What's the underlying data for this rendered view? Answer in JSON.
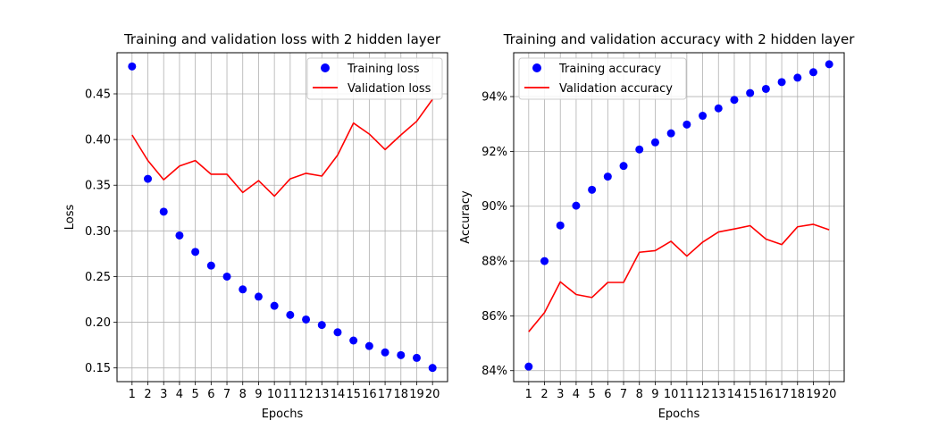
{
  "chart_data": [
    {
      "type": "line",
      "title": "Training and validation loss with 2 hidden layer",
      "xlabel": "Epochs",
      "ylabel": "Loss",
      "x": [
        1,
        2,
        3,
        4,
        5,
        6,
        7,
        8,
        9,
        10,
        11,
        12,
        13,
        14,
        15,
        16,
        17,
        18,
        19,
        20
      ],
      "x_ticks": [
        "1",
        "2",
        "3",
        "4",
        "5",
        "6",
        "7",
        "8",
        "9",
        "10",
        "11",
        "12",
        "13",
        "14",
        "15",
        "16",
        "17",
        "18",
        "19",
        "20"
      ],
      "xlim": [
        0.05,
        20.95
      ],
      "ylim": [
        0.135,
        0.495
      ],
      "y_ticks": [
        0.15,
        0.2,
        0.25,
        0.3,
        0.35,
        0.4,
        0.45
      ],
      "y_tick_labels": [
        "0.15",
        "0.20",
        "0.25",
        "0.30",
        "0.35",
        "0.40",
        "0.45"
      ],
      "grid": true,
      "legend_position": "top-right",
      "series": [
        {
          "name": "Training loss",
          "style": "markers",
          "color": "#0000ff",
          "values": [
            0.48,
            0.357,
            0.321,
            0.295,
            0.277,
            0.262,
            0.25,
            0.236,
            0.228,
            0.218,
            0.208,
            0.203,
            0.197,
            0.189,
            0.18,
            0.174,
            0.167,
            0.164,
            0.161,
            0.15
          ]
        },
        {
          "name": "Validation loss",
          "style": "line",
          "color": "#ff0000",
          "values": [
            0.405,
            0.377,
            0.356,
            0.371,
            0.377,
            0.362,
            0.362,
            0.342,
            0.355,
            0.338,
            0.357,
            0.363,
            0.36,
            0.383,
            0.418,
            0.406,
            0.389,
            0.405,
            0.42,
            0.444
          ]
        }
      ]
    },
    {
      "type": "line",
      "title": "Training and validation accuracy with 2 hidden layer",
      "xlabel": "Epochs",
      "ylabel": "Accuracy",
      "x": [
        1,
        2,
        3,
        4,
        5,
        6,
        7,
        8,
        9,
        10,
        11,
        12,
        13,
        14,
        15,
        16,
        17,
        18,
        19,
        20
      ],
      "x_ticks": [
        "1",
        "2",
        "3",
        "4",
        "5",
        "6",
        "7",
        "8",
        "9",
        "10",
        "11",
        "12",
        "13",
        "14",
        "15",
        "16",
        "17",
        "18",
        "19",
        "20"
      ],
      "xlim": [
        0.05,
        20.95
      ],
      "ylim": [
        83.6,
        95.6
      ],
      "y_ticks": [
        84,
        86,
        88,
        90,
        92,
        94
      ],
      "y_tick_labels": [
        "84%",
        "86%",
        "88%",
        "90%",
        "92%",
        "94%"
      ],
      "grid": true,
      "legend_position": "top-left",
      "series": [
        {
          "name": "Training accuracy",
          "style": "markers",
          "color": "#0000ff",
          "values": [
            84.15,
            88.0,
            89.3,
            90.02,
            90.6,
            91.08,
            91.47,
            92.07,
            92.33,
            92.66,
            92.98,
            93.3,
            93.57,
            93.88,
            94.13,
            94.28,
            94.53,
            94.69,
            94.89,
            95.18
          ]
        },
        {
          "name": "Validation accuracy",
          "style": "line",
          "color": "#ff0000",
          "values": [
            85.42,
            86.12,
            87.24,
            86.78,
            86.67,
            87.22,
            87.22,
            88.32,
            88.38,
            88.72,
            88.18,
            88.69,
            89.06,
            89.17,
            89.29,
            88.8,
            88.6,
            89.25,
            89.34,
            89.14
          ]
        }
      ]
    }
  ]
}
